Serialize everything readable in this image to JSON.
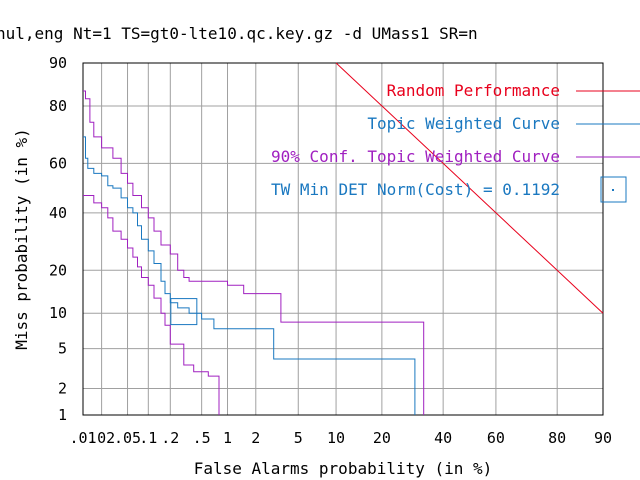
{
  "title": "nul,eng Nt=1 TS=gt0-lte10.qc.key.gz -d UMass1 SR=n",
  "chart_data": {
    "type": "line",
    "xlabel": "False Alarms probability (in %)",
    "ylabel": "Miss probability (in %)",
    "scale": "normal-deviate (DET)",
    "xlim": [
      0.01,
      90
    ],
    "ylim": [
      1,
      90
    ],
    "grid": true,
    "legend_position": "top-right",
    "x_ticks": [
      {
        "value": 0.01,
        "label": ".01"
      },
      {
        "value": 0.02,
        "label": ".02"
      },
      {
        "value": 0.05,
        "label": ".05"
      },
      {
        "value": 0.1,
        "label": ".1"
      },
      {
        "value": 0.2,
        "label": ".2"
      },
      {
        "value": 0.5,
        "label": ".5"
      },
      {
        "value": 1,
        "label": "1"
      },
      {
        "value": 2,
        "label": "2"
      },
      {
        "value": 5,
        "label": "5"
      },
      {
        "value": 10,
        "label": "10"
      },
      {
        "value": 20,
        "label": "20"
      },
      {
        "value": 40,
        "label": "40"
      },
      {
        "value": 60,
        "label": "60"
      },
      {
        "value": 80,
        "label": "80"
      },
      {
        "value": 90,
        "label": "90"
      }
    ],
    "y_ticks": [
      {
        "value": 1,
        "label": "1"
      },
      {
        "value": 2,
        "label": "2"
      },
      {
        "value": 5,
        "label": "5"
      },
      {
        "value": 10,
        "label": "10"
      },
      {
        "value": 20,
        "label": "20"
      },
      {
        "value": 40,
        "label": "40"
      },
      {
        "value": 60,
        "label": "60"
      },
      {
        "value": 80,
        "label": "80"
      },
      {
        "value": 90,
        "label": "90"
      }
    ],
    "series": [
      {
        "name": "Random Performance",
        "color": "#e8001c",
        "style": "line",
        "points": [
          [
            10,
            90
          ],
          [
            90,
            10
          ]
        ]
      },
      {
        "name": "Topic Weighted Curve",
        "color": "#1a78c0",
        "style": "step",
        "points": [
          [
            0.01,
            70
          ],
          [
            0.011,
            62
          ],
          [
            0.012,
            58
          ],
          [
            0.015,
            56
          ],
          [
            0.02,
            55
          ],
          [
            0.025,
            51
          ],
          [
            0.03,
            50
          ],
          [
            0.04,
            46
          ],
          [
            0.05,
            42
          ],
          [
            0.06,
            40
          ],
          [
            0.07,
            35
          ],
          [
            0.08,
            30
          ],
          [
            0.1,
            26
          ],
          [
            0.12,
            22
          ],
          [
            0.15,
            17
          ],
          [
            0.17,
            14
          ],
          [
            0.2,
            12
          ],
          [
            0.25,
            11
          ],
          [
            0.35,
            10
          ],
          [
            0.5,
            9
          ],
          [
            0.7,
            7.5
          ],
          [
            1.5,
            7.5
          ],
          [
            3,
            4
          ],
          [
            30,
            4
          ],
          [
            30,
            1
          ]
        ]
      },
      {
        "name": "90% Conf. Topic Weighted Curve",
        "color": "#a020c0",
        "style": "step",
        "points": [
          [
            0.01,
            84
          ],
          [
            0.011,
            82
          ],
          [
            0.013,
            75
          ],
          [
            0.015,
            70
          ],
          [
            0.02,
            66
          ],
          [
            0.03,
            62
          ],
          [
            0.04,
            56
          ],
          [
            0.05,
            52
          ],
          [
            0.06,
            47
          ],
          [
            0.08,
            42
          ],
          [
            0.1,
            38
          ],
          [
            0.12,
            33
          ],
          [
            0.15,
            28
          ],
          [
            0.2,
            25
          ],
          [
            0.25,
            20
          ],
          [
            0.3,
            18
          ],
          [
            0.35,
            17
          ],
          [
            0.5,
            17
          ],
          [
            1,
            16
          ],
          [
            1.5,
            14
          ],
          [
            3.5,
            8.5
          ],
          [
            33,
            8.5
          ],
          [
            33,
            1
          ]
        ]
      },
      {
        "name": "90% Conf. Topic Weighted Curve",
        "color": "#a020c0",
        "style": "step",
        "points": [
          [
            0.01,
            47
          ],
          [
            0.015,
            44
          ],
          [
            0.02,
            42
          ],
          [
            0.025,
            38
          ],
          [
            0.03,
            33
          ],
          [
            0.04,
            30
          ],
          [
            0.05,
            27
          ],
          [
            0.06,
            24
          ],
          [
            0.07,
            21
          ],
          [
            0.08,
            18
          ],
          [
            0.1,
            16
          ],
          [
            0.12,
            13
          ],
          [
            0.15,
            10
          ],
          [
            0.17,
            8
          ],
          [
            0.2,
            5.5
          ],
          [
            0.3,
            3.5
          ],
          [
            0.4,
            3
          ],
          [
            0.6,
            2.7
          ],
          [
            0.8,
            2.5
          ],
          [
            0.8,
            1
          ]
        ]
      }
    ],
    "marker": {
      "name": "TW Min DET Norm(Cost) = 0.1192",
      "color": "#1a78c0",
      "x": 0.3,
      "y": 10.3
    }
  }
}
